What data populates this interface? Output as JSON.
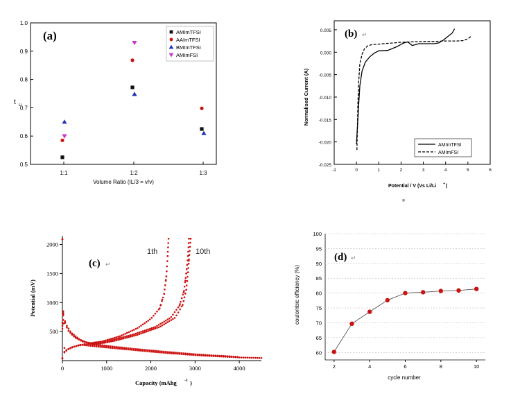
{
  "chart_data": [
    {
      "panel_label": "(a)",
      "type": "scatter",
      "xlabel": "Volume Ratio (IL/3 = v/v)",
      "ylabel": "t",
      "ylabel_sub": "Li",
      "categories": [
        "1:1",
        "1:2",
        "1:3"
      ],
      "ylim": [
        0.5,
        1.0
      ],
      "yticks": [
        "0.5",
        "0.6",
        "0.7",
        "0.8",
        "0.9",
        "1.0"
      ],
      "legend_position": "top-right",
      "series": [
        {
          "name": "AMImTFSI",
          "marker": "square",
          "color": "#111111",
          "values": [
            0.525,
            0.772,
            0.625
          ]
        },
        {
          "name": "AAImTFSI",
          "marker": "circle",
          "color": "#cc1111",
          "values": [
            0.585,
            0.868,
            0.698
          ]
        },
        {
          "name": "BMImTFSI",
          "marker": "triangle-up",
          "color": "#2233bb",
          "values": [
            0.65,
            0.748,
            0.61
          ]
        },
        {
          "name": "AMImFSI",
          "marker": "triangle-down",
          "color": "#cc33cc",
          "values": [
            0.6,
            0.93,
            null
          ]
        }
      ]
    },
    {
      "panel_label": "(b)",
      "type": "line",
      "xlabel": "Potential / V (Vs Li/Li",
      "xlabel_sup": "+",
      "xlabel_end": ")",
      "ylabel": "Normalised Current  (A)",
      "xlim": [
        -1,
        6
      ],
      "ylim": [
        -0.025,
        0.007
      ],
      "xticks": [
        "-1",
        "0",
        "1",
        "2",
        "3",
        "4",
        "5",
        "6"
      ],
      "yticks": [
        "-0.025",
        "-0.020",
        "-0.015",
        "-0.010",
        "-0.005",
        "0.000",
        "0.005"
      ],
      "legend_position": "bottom-right",
      "series": [
        {
          "name": "AMImTFSI",
          "style": "solid",
          "x": [
            0,
            0.02,
            0.05,
            0.1,
            0.15,
            0.25,
            0.4,
            0.6,
            0.8,
            1.0,
            1.4,
            1.8,
            2.1,
            2.3,
            2.5,
            2.8,
            3.2,
            3.5,
            3.7,
            3.9,
            4.1,
            4.3,
            4.4
          ],
          "y": [
            -0.0205,
            -0.0185,
            -0.016,
            -0.0115,
            -0.0075,
            -0.0042,
            -0.0022,
            -0.001,
            -0.0002,
            0.0003,
            0.0004,
            0.0012,
            0.002,
            0.0023,
            0.0015,
            0.0019,
            0.0019,
            0.0019,
            0.0021,
            0.0027,
            0.0035,
            0.0043,
            0.0052
          ]
        },
        {
          "name": "AMImFSI",
          "style": "dashed",
          "x": [
            0.02,
            0.04,
            0.06,
            0.1,
            0.15,
            0.25,
            0.35,
            0.5,
            0.7,
            1.0,
            1.5,
            2.0,
            2.5,
            3.0,
            3.5,
            4.0,
            4.5,
            4.8,
            5.0,
            5.15
          ],
          "y": [
            -0.0218,
            -0.0175,
            -0.012,
            -0.0065,
            -0.0025,
            -0.0005,
            0.0007,
            0.0014,
            0.0017,
            0.0018,
            0.002,
            0.0022,
            0.0023,
            0.0024,
            0.0024,
            0.0025,
            0.0025,
            0.0026,
            0.003,
            0.0036
          ]
        }
      ],
      "marker_glyph": "■"
    },
    {
      "panel_label": "(c)",
      "type": "scatter",
      "xlabel": "Capacity (mAhg",
      "xlabel_sup": "-1",
      "xlabel_end": ")",
      "ylabel": "Potential (mV)",
      "xlim": [
        0,
        4500
      ],
      "ylim": [
        0,
        2150
      ],
      "xticks": [
        "0",
        "1000",
        "2000",
        "3000",
        "4000"
      ],
      "yticks": [
        "500",
        "1000",
        "1500",
        "2000"
      ],
      "annotations": [
        "1th",
        "10th"
      ],
      "color": "#cc1111",
      "discharge_curves": [
        {
          "x": [
            0,
            30,
            150,
            400,
            800,
            1500,
            2200,
            3000,
            3600,
            4000,
            4500
          ],
          "y": [
            550,
            130,
            210,
            275,
            240,
            190,
            140,
            95,
            70,
            55,
            45
          ]
        },
        {
          "x": [
            0,
            40,
            200,
            500,
            900,
            1500,
            2200,
            2900,
            3500,
            4000
          ],
          "y": [
            600,
            150,
            230,
            285,
            250,
            200,
            150,
            105,
            80,
            65
          ]
        },
        {
          "x": [
            0,
            50,
            300,
            600,
            1000,
            1600,
            2300,
            3000,
            3400,
            3800
          ],
          "y": [
            650,
            170,
            250,
            290,
            255,
            205,
            155,
            110,
            90,
            75
          ]
        }
      ],
      "charge_curves": [
        {
          "x": [
            20,
            50,
            100,
            200,
            400,
            600,
            900,
            1300,
            1700,
            2000,
            2200,
            2300,
            2350,
            2380,
            2400
          ],
          "y": [
            850,
            700,
            600,
            480,
            360,
            300,
            330,
            420,
            560,
            720,
            900,
            1150,
            1450,
            1800,
            2100
          ]
        },
        {
          "x": [
            20,
            60,
            120,
            250,
            450,
            700,
            1100,
            1600,
            2100,
            2450,
            2650,
            2750,
            2800,
            2840,
            2860
          ],
          "y": [
            820,
            650,
            530,
            420,
            330,
            290,
            350,
            450,
            580,
            740,
            950,
            1200,
            1500,
            1800,
            2100
          ]
        },
        {
          "x": [
            20,
            70,
            150,
            300,
            550,
            800,
            1200,
            1700,
            2200,
            2550,
            2720,
            2800,
            2840,
            2870,
            2900
          ],
          "y": [
            800,
            620,
            500,
            390,
            310,
            285,
            345,
            445,
            580,
            740,
            960,
            1220,
            1520,
            1820,
            2100
          ]
        }
      ]
    },
    {
      "panel_label": "(d)",
      "type": "line",
      "xlabel": "cycle number",
      "ylabel": "coulombic efficiency (%)",
      "x": [
        2,
        3,
        4,
        5,
        6,
        7,
        8,
        9,
        10
      ],
      "y": [
        60.2,
        69.7,
        73.7,
        77.6,
        80.0,
        80.3,
        80.7,
        80.9,
        81.4
      ],
      "xlim": [
        1.5,
        10.5
      ],
      "ylim": [
        57.5,
        100
      ],
      "xticks": [
        "2",
        "4",
        "6",
        "8",
        "10"
      ],
      "yticks": [
        "60",
        "65",
        "70",
        "75",
        "80",
        "85",
        "90",
        "95",
        "100"
      ],
      "grid": true,
      "color": "#cc1111"
    }
  ],
  "panel_marks": [
    "↵",
    "↵",
    "↵",
    "↵"
  ]
}
